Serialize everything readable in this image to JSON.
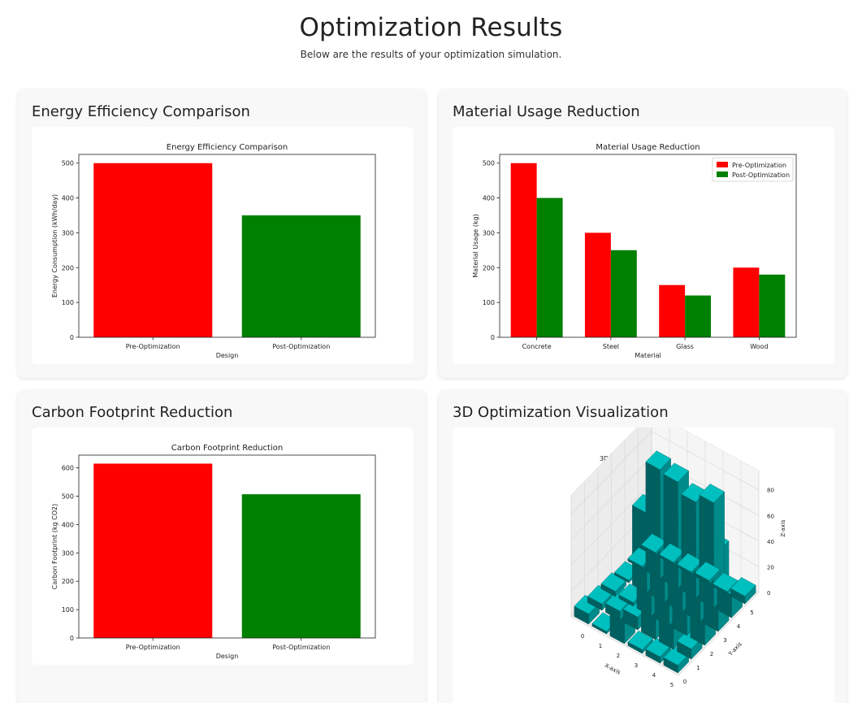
{
  "header": {
    "title": "Optimization Results",
    "subtitle": "Below are the results of your optimization simulation."
  },
  "cards": {
    "energy": {
      "title": "Energy Efficiency Comparison"
    },
    "material": {
      "title": "Material Usage Reduction"
    },
    "carbon": {
      "title": "Carbon Footprint Reduction"
    },
    "viz3d": {
      "title": "3D Optimization Visualization"
    }
  },
  "colors": {
    "pre": "#ff0000",
    "post": "#008000",
    "bar3d": "#00bfbf"
  },
  "chart_data": [
    {
      "type": "bar",
      "title": "Energy Efficiency Comparison",
      "xlabel": "Design",
      "ylabel": "Energy Consumption (kWh/day)",
      "categories": [
        "Pre-Optimization",
        "Post-Optimization"
      ],
      "values": [
        500,
        350
      ],
      "ylim": [
        0,
        525
      ],
      "yticks": [
        0,
        100,
        200,
        300,
        400,
        500
      ]
    },
    {
      "type": "bar",
      "title": "Material Usage Reduction",
      "xlabel": "Material",
      "ylabel": "Material Usage (kg)",
      "categories": [
        "Concrete",
        "Steel",
        "Glass",
        "Wood"
      ],
      "series": [
        {
          "name": "Pre-Optimization",
          "values": [
            500,
            300,
            150,
            200
          ]
        },
        {
          "name": "Post-Optimization",
          "values": [
            400,
            250,
            120,
            180
          ]
        }
      ],
      "ylim": [
        0,
        525
      ],
      "yticks": [
        0,
        100,
        200,
        300,
        400,
        500
      ],
      "legend": "top-right"
    },
    {
      "type": "bar",
      "title": "Carbon Footprint Reduction",
      "xlabel": "Design",
      "ylabel": "Carbon Footprint (kg CO2)",
      "categories": [
        "Pre-Optimization",
        "Post-Optimization"
      ],
      "values": [
        615,
        507
      ],
      "ylim": [
        0,
        645
      ],
      "yticks": [
        0,
        100,
        200,
        300,
        400,
        500,
        600
      ]
    },
    {
      "type": "bar3d",
      "title": "3D Optimization Visualization",
      "xlabel": "X-axis",
      "ylabel": "Y-axis",
      "zlabel": "Z-axis",
      "xticks": [
        0,
        1,
        2,
        3,
        4,
        5
      ],
      "yticks": [
        0,
        1,
        2,
        3,
        4,
        5
      ],
      "zticks": [
        0,
        20,
        40,
        60,
        80
      ],
      "zlim": [
        0,
        95
      ],
      "heights": [
        [
          6,
          8,
          72,
          62,
          18,
          6
        ],
        [
          5,
          90,
          88,
          25,
          82,
          2
        ],
        [
          3,
          84,
          60,
          52,
          75,
          3
        ],
        [
          30,
          10,
          48,
          80,
          83,
          2
        ],
        [
          2,
          7,
          3,
          62,
          85,
          2
        ],
        [
          8,
          5,
          4,
          2,
          2,
          2
        ]
      ]
    }
  ]
}
